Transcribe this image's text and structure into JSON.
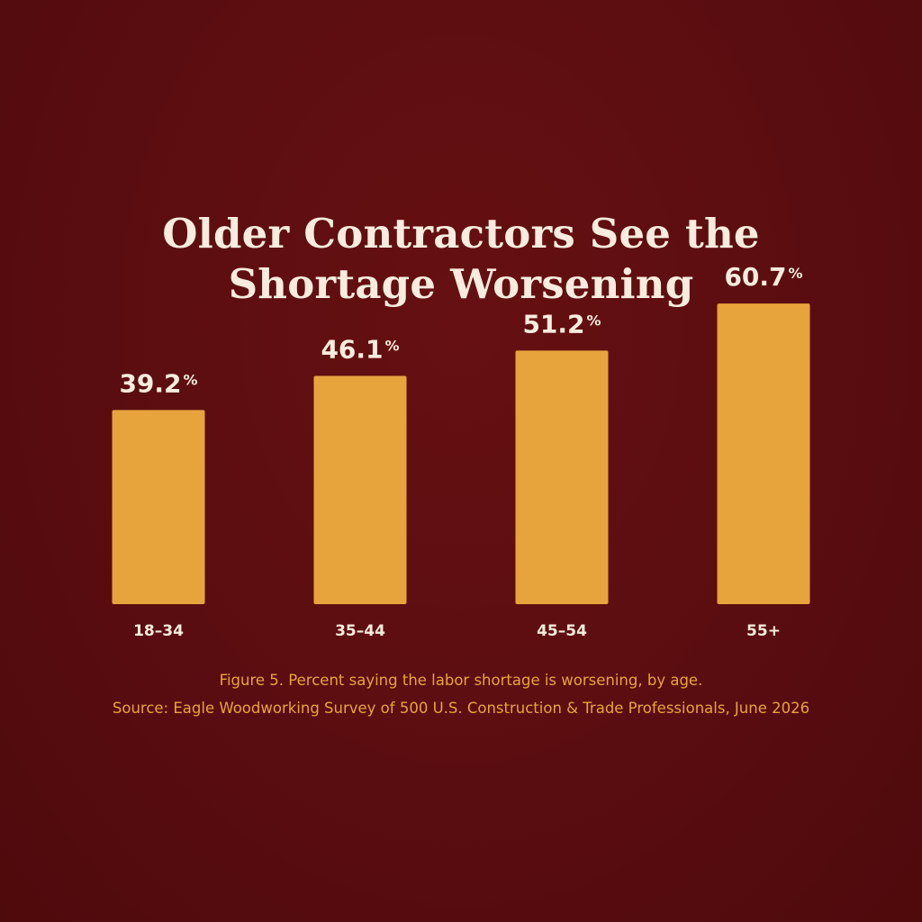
{
  "chart_data": {
    "type": "bar",
    "title": "Older Contractors See the Shortage Worsening",
    "categories": [
      "18–34",
      "35–44",
      "45–54",
      "55+"
    ],
    "values": [
      39.2,
      46.1,
      51.2,
      60.7
    ],
    "value_labels": [
      "39.2",
      "46.1",
      "51.2",
      "60.7"
    ],
    "value_suffix": "%",
    "xlabel": "",
    "ylabel": "",
    "ylim": [
      0,
      100
    ],
    "grid": false,
    "legend": "none",
    "bar_color": "#e8a43c",
    "background_color": "#5a0d10",
    "text_color": "#f7ecdd"
  },
  "caption": {
    "figure": "Figure 5. Percent saying the labor shortage is worsening, by age.",
    "source": "Source: Eagle Woodworking Survey of 500 U.S. Construction & Trade Professionals, June 2026"
  }
}
